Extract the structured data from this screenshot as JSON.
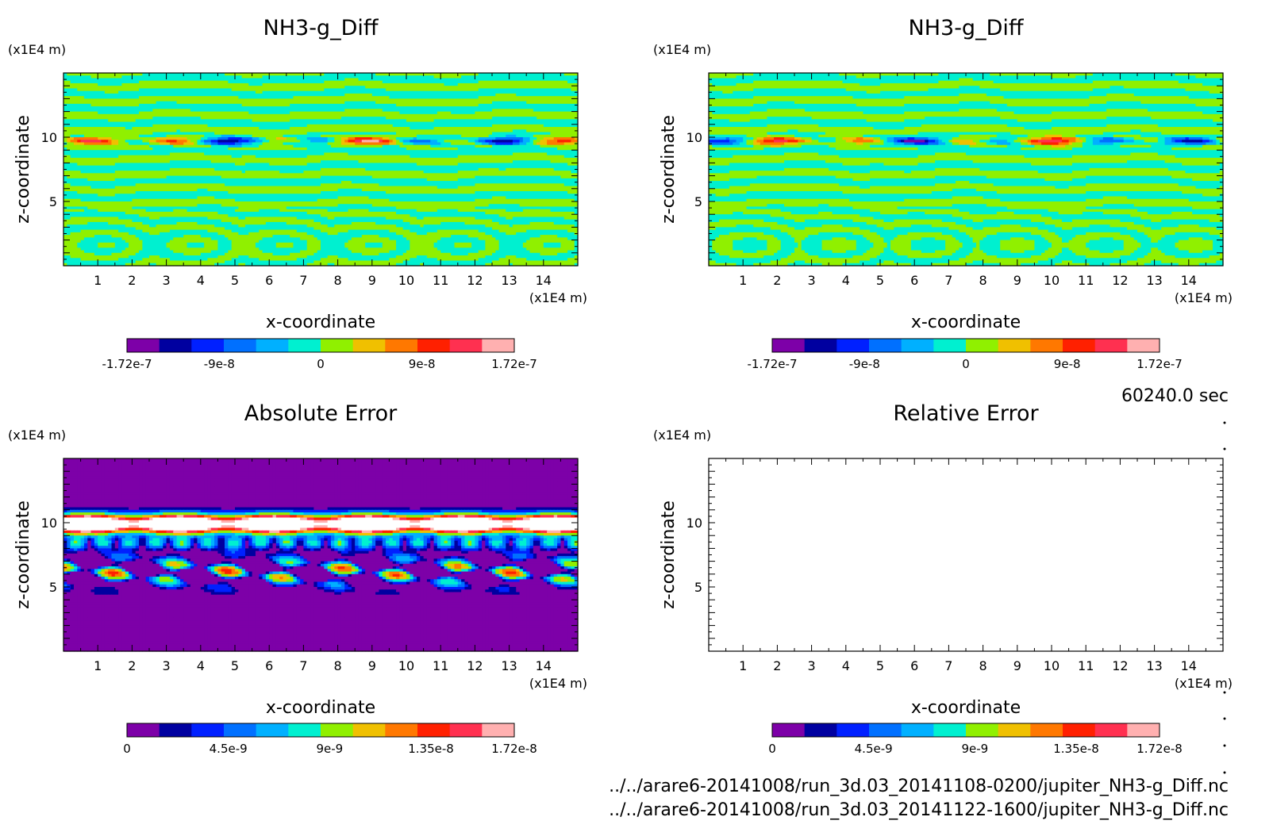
{
  "meta": {
    "time": "60240.0 sec"
  },
  "files": [
    "../../arare6-20141008/run_3d.03_20141108-0200/jupiter_NH3-g_Diff.nc",
    "../../arare6-20141008/run_3d.03_20141122-1600/jupiter_NH3-g_Diff.nc"
  ],
  "chart_data": [
    {
      "type": "heatmap",
      "title": "NH3-g_Diff",
      "xlabel": "x-coordinate",
      "ylabel": "z-coordinate",
      "xunit": "(x1E4 m)",
      "yunit": "(x1E4 m)",
      "xlim": [
        0,
        15
      ],
      "ylim": [
        0,
        15
      ],
      "xticks": [
        1,
        2,
        3,
        4,
        5,
        6,
        7,
        8,
        9,
        10,
        11,
        12,
        13,
        14
      ],
      "yticks": [
        5,
        10
      ],
      "field": "diff_a",
      "colorbar": {
        "min": -1.72e-07,
        "max": 1.72e-07,
        "labels": [
          "-1.72e-7",
          "-9e-8",
          "0",
          "9e-8",
          "1.72e-7"
        ],
        "label_values": [
          -1.72e-07,
          -9e-08,
          0,
          9e-08,
          1.72e-07
        ]
      }
    },
    {
      "type": "heatmap",
      "title": "NH3-g_Diff",
      "xlabel": "x-coordinate",
      "ylabel": "z-coordinate",
      "xunit": "(x1E4 m)",
      "yunit": "(x1E4 m)",
      "xlim": [
        0,
        15
      ],
      "ylim": [
        0,
        15
      ],
      "xticks": [
        1,
        2,
        3,
        4,
        5,
        6,
        7,
        8,
        9,
        10,
        11,
        12,
        13,
        14
      ],
      "yticks": [
        5,
        10
      ],
      "field": "diff_b",
      "colorbar": {
        "min": -1.72e-07,
        "max": 1.72e-07,
        "labels": [
          "-1.72e-7",
          "-9e-8",
          "0",
          "9e-8",
          "1.72e-7"
        ],
        "label_values": [
          -1.72e-07,
          -9e-08,
          0,
          9e-08,
          1.72e-07
        ]
      }
    },
    {
      "type": "heatmap",
      "title": "Absolute Error",
      "xlabel": "x-coordinate",
      "ylabel": "z-coordinate",
      "xunit": "(x1E4 m)",
      "yunit": "(x1E4 m)",
      "xlim": [
        0,
        15
      ],
      "ylim": [
        0,
        15
      ],
      "xticks": [
        1,
        2,
        3,
        4,
        5,
        6,
        7,
        8,
        9,
        10,
        11,
        12,
        13,
        14
      ],
      "yticks": [
        5,
        10
      ],
      "field": "abs_error",
      "colorbar": {
        "min": 0,
        "max": 1.72e-08,
        "labels": [
          "0",
          "4.5e-9",
          "9e-9",
          "1.35e-8",
          "1.72e-8"
        ],
        "label_values": [
          0,
          4.5e-09,
          9e-09,
          1.35e-08,
          1.72e-08
        ]
      }
    },
    {
      "type": "heatmap",
      "title": "Relative Error",
      "xlabel": "x-coordinate",
      "ylabel": "z-coordinate",
      "xunit": "(x1E4 m)",
      "yunit": "(x1E4 m)",
      "xlim": [
        0,
        15
      ],
      "ylim": [
        0,
        15
      ],
      "xticks": [
        1,
        2,
        3,
        4,
        5,
        6,
        7,
        8,
        9,
        10,
        11,
        12,
        13,
        14
      ],
      "yticks": [
        5,
        10
      ],
      "field": "empty",
      "colorbar": {
        "min": 0,
        "max": 1.72e-08,
        "labels": [
          "0",
          "4.5e-9",
          "9e-9",
          "1.35e-8",
          "1.72e-8"
        ],
        "label_values": [
          0,
          4.5e-09,
          9e-09,
          1.35e-08,
          1.72e-08
        ]
      }
    }
  ],
  "palette": {
    "diff": [
      "#7d00a8",
      "#0000a0",
      "#0020ff",
      "#0070ff",
      "#00b0ff",
      "#00f0d0",
      "#90f000",
      "#f0c000",
      "#ff7800",
      "#ff2000",
      "#ff3050",
      "#ffb0b0"
    ],
    "error": [
      "#7d00a8",
      "#0000a0",
      "#0020ff",
      "#0070ff",
      "#00b0ff",
      "#00f0d0",
      "#90f000",
      "#f0c000",
      "#ff7800",
      "#ff2000",
      "#ff3050",
      "#ffb0b0"
    ],
    "saturate": "#ffffff"
  }
}
